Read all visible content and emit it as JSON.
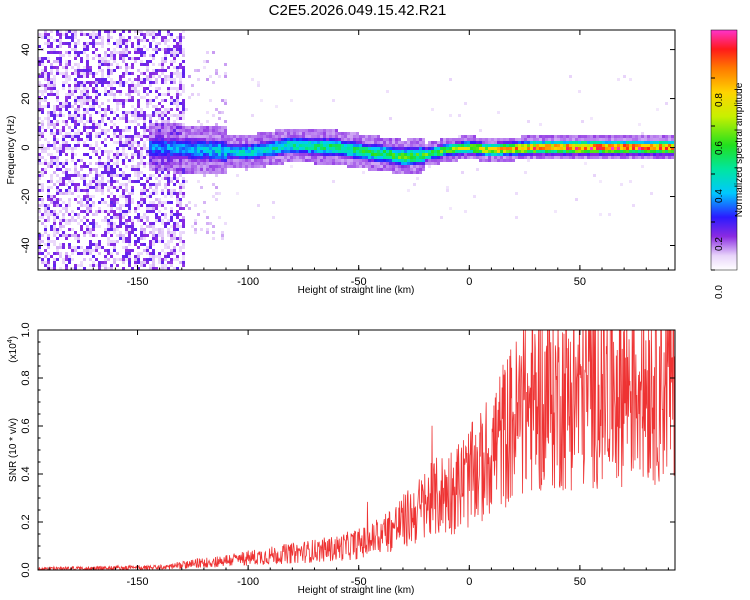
{
  "title": "C2E5.2026.049.15.42.R21",
  "chart_data": [
    {
      "type": "heatmap",
      "title": "C2E5.2026.049.15.42.R21",
      "xlabel": "Height of straight line (km)",
      "ylabel": "Frequency (Hz)",
      "xlim": [
        -195,
        93
      ],
      "ylim": [
        -50,
        48
      ],
      "xticks": [
        "-150",
        "-100",
        "-50",
        "0",
        "50"
      ],
      "xtick_values": [
        -150,
        -100,
        -50,
        0,
        50
      ],
      "yticks": [
        "40",
        "20",
        "0",
        "-20",
        "-40"
      ],
      "ytick_values": [
        40,
        20,
        0,
        -20,
        -40
      ],
      "colorbar": {
        "label": "Normalized spectral amplitude",
        "range": [
          0,
          1
        ],
        "ticks": [
          "0.0",
          "0.2",
          "0.4",
          "0.6",
          "0.8"
        ],
        "tick_values": [
          0,
          0.2,
          0.4,
          0.6,
          0.8
        ]
      },
      "ridge": {
        "x": [
          -140,
          -120,
          -100,
          -80,
          -60,
          -45,
          -35,
          -30,
          -20,
          -10,
          0,
          10,
          30,
          50,
          70,
          93
        ],
        "freq": [
          0,
          -1,
          -2,
          1,
          0,
          -2,
          -3,
          -4,
          -3,
          -1,
          0,
          -1,
          0,
          0,
          0,
          0
        ],
        "amplitude": [
          0.3,
          0.35,
          0.4,
          0.45,
          0.5,
          0.5,
          0.55,
          0.6,
          0.55,
          0.6,
          0.7,
          0.75,
          0.9,
          0.95,
          0.95,
          0.95
        ]
      }
    },
    {
      "type": "line",
      "xlabel": "Height of straight line (km)",
      "ylabel": "SNR (10 * v/v)",
      "scale_label": "(x10",
      "scale_exponent": "4",
      "scale_suffix": ")",
      "xlim": [
        -195,
        93
      ],
      "ylim": [
        0,
        1.0
      ],
      "xticks": [
        "-150",
        "-100",
        "-50",
        "0",
        "50"
      ],
      "xtick_values": [
        -150,
        -100,
        -50,
        0,
        50
      ],
      "yticks": [
        "0.0",
        "0.2",
        "0.4",
        "0.6",
        "0.8",
        "1.0"
      ],
      "ytick_values": [
        0,
        0.2,
        0.4,
        0.6,
        0.8,
        1.0
      ],
      "series": [
        {
          "name": "SNR",
          "color": "#ee3333",
          "trend_x": [
            -195,
            -140,
            -130,
            -120,
            -100,
            -80,
            -60,
            -45,
            -30,
            -15,
            -5,
            5,
            10,
            20,
            30,
            50,
            70,
            93
          ],
          "trend_y": [
            0.005,
            0.01,
            0.02,
            0.03,
            0.05,
            0.07,
            0.09,
            0.12,
            0.2,
            0.3,
            0.35,
            0.42,
            0.5,
            0.62,
            0.7,
            0.74,
            0.78,
            0.8
          ]
        }
      ]
    }
  ]
}
